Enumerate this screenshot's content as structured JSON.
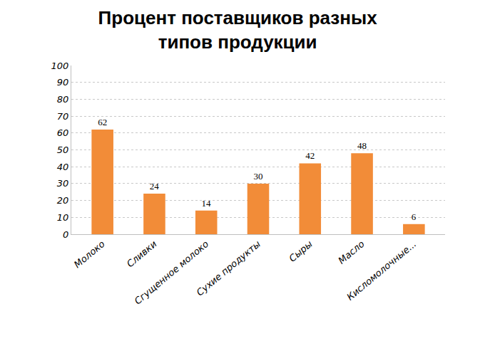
{
  "chart_data": {
    "type": "bar",
    "title": "Процент поставщиков разных типов продукции",
    "categories": [
      "Молоко",
      "Сливки",
      "Сгущенное молоко",
      "Сухие продукты",
      "Сыры",
      "Масло",
      "Кисломолочные..."
    ],
    "values": [
      62,
      24,
      14,
      30,
      42,
      48,
      6
    ],
    "color": "#f28c38",
    "ylim": [
      0,
      100
    ],
    "yticks": [
      0,
      10,
      20,
      30,
      40,
      50,
      60,
      70,
      80,
      90,
      100
    ],
    "grid": true,
    "data_labels": true
  }
}
